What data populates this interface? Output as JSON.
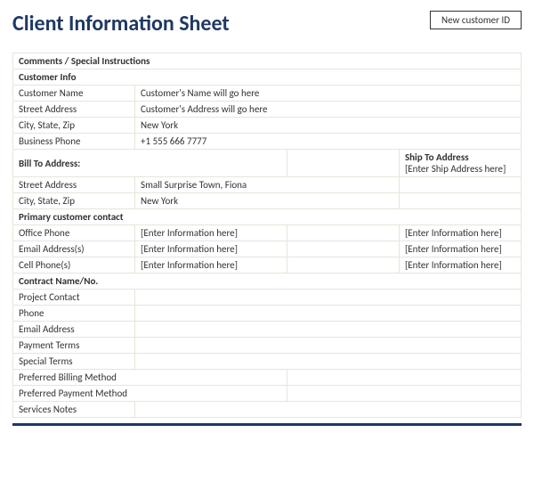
{
  "header": {
    "title": "Client Information Sheet",
    "new_id_label": "New customer ID"
  },
  "comments_label": "Comments / Special Instructions",
  "customer_info": {
    "heading": "Customer Info",
    "rows": {
      "name": {
        "label": "Customer Name",
        "value": "Customer's Name will go here"
      },
      "address": {
        "label": "Street Address",
        "value": "Customer's Address will go here"
      },
      "csz": {
        "label": "City, State, Zip",
        "value": "New York"
      },
      "phone": {
        "label": "Business Phone",
        "value": "+1 555 666 7777"
      }
    }
  },
  "bill_to": {
    "heading": "Bill To Address:",
    "ship_heading": "Ship To Address",
    "ship_placeholder": "[Enter Ship Address here]",
    "rows": {
      "street": {
        "label": "Street Address",
        "value": "Small Surprise Town, Fiona"
      },
      "csz": {
        "label": "City, State, Zip",
        "value": "New York"
      }
    }
  },
  "primary_contact": {
    "heading": "Primary customer contact",
    "placeholder": "[Enter Information here]",
    "rows": {
      "office": {
        "label": "Office Phone"
      },
      "email": {
        "label": "Email Address(s)"
      },
      "cell": {
        "label": "Cell Phone(s)"
      }
    }
  },
  "contract": {
    "heading": "Contract Name/No.",
    "rows": {
      "project_contact": "Project Contact",
      "phone": "Phone",
      "email": "Email Address",
      "payment_terms": "Payment Terms",
      "special_terms": "Special Terms",
      "pref_billing": "Preferred Billing Method",
      "pref_payment": "Preferred Payment Method",
      "services_notes": "Services Notes"
    }
  },
  "style": {
    "title_color": "#1f3864",
    "border_color": "#e8e4d8",
    "rule_color": "#1f3864"
  }
}
